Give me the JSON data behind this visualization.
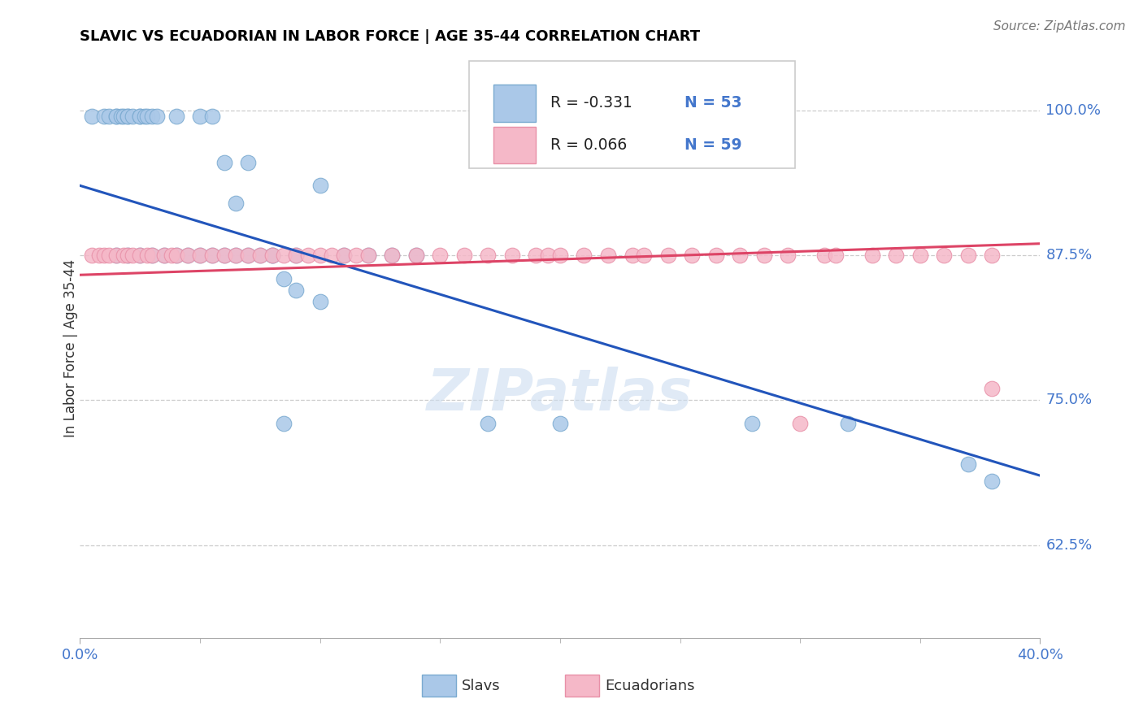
{
  "title": "SLAVIC VS ECUADORIAN IN LABOR FORCE | AGE 35-44 CORRELATION CHART",
  "source": "Source: ZipAtlas.com",
  "ylabel": "In Labor Force | Age 35-44",
  "legend_r_slavs": "R = -0.331",
  "legend_n_slavs": "N = 53",
  "legend_r_ecua": "R = 0.066",
  "legend_n_ecua": "N = 59",
  "slavs_color_fill": "#aac8e8",
  "slavs_color_edge": "#7aaad0",
  "ecua_color_fill": "#f5b8c8",
  "ecua_color_edge": "#e890a8",
  "slavs_line_color": "#2255bb",
  "ecua_line_color": "#dd4466",
  "axis_label_color": "#4477cc",
  "xmin": 0.0,
  "xmax": 0.4,
  "ymin": 0.545,
  "ymax": 1.045,
  "ytick_values": [
    0.625,
    0.75,
    0.875,
    1.0
  ],
  "ytick_labels": [
    "62.5%",
    "75.0%",
    "87.5%",
    "100.0%"
  ],
  "slavs_regression_y0": 0.935,
  "slavs_regression_y1": 0.685,
  "ecua_regression_y0": 0.858,
  "ecua_regression_y1": 0.885,
  "slavs_x": [
    0.005,
    0.01,
    0.012,
    0.015,
    0.015,
    0.017,
    0.018,
    0.02,
    0.02,
    0.022,
    0.025,
    0.025,
    0.027,
    0.028,
    0.03,
    0.032,
    0.04,
    0.05,
    0.055,
    0.06,
    0.065,
    0.07,
    0.08,
    0.09,
    0.1,
    0.015,
    0.02,
    0.025,
    0.03,
    0.035,
    0.04,
    0.045,
    0.05,
    0.055,
    0.06,
    0.065,
    0.07,
    0.075,
    0.08,
    0.085,
    0.09,
    0.1,
    0.11,
    0.12,
    0.13,
    0.14,
    0.085,
    0.17,
    0.2,
    0.28,
    0.32,
    0.37,
    0.38
  ],
  "slavs_y": [
    0.995,
    0.995,
    0.995,
    0.995,
    0.995,
    0.995,
    0.995,
    0.995,
    0.995,
    0.995,
    0.995,
    0.995,
    0.995,
    0.995,
    0.995,
    0.995,
    0.995,
    0.995,
    0.995,
    0.955,
    0.92,
    0.955,
    0.875,
    0.875,
    0.935,
    0.875,
    0.875,
    0.875,
    0.875,
    0.875,
    0.875,
    0.875,
    0.875,
    0.875,
    0.875,
    0.875,
    0.875,
    0.875,
    0.875,
    0.855,
    0.845,
    0.835,
    0.875,
    0.875,
    0.875,
    0.875,
    0.73,
    0.73,
    0.73,
    0.73,
    0.73,
    0.695,
    0.68
  ],
  "ecua_x": [
    0.005,
    0.008,
    0.01,
    0.012,
    0.015,
    0.018,
    0.02,
    0.022,
    0.025,
    0.028,
    0.03,
    0.035,
    0.038,
    0.04,
    0.045,
    0.05,
    0.055,
    0.06,
    0.065,
    0.07,
    0.075,
    0.08,
    0.085,
    0.09,
    0.095,
    0.1,
    0.105,
    0.11,
    0.115,
    0.12,
    0.13,
    0.14,
    0.15,
    0.16,
    0.17,
    0.18,
    0.19,
    0.195,
    0.2,
    0.21,
    0.22,
    0.23,
    0.235,
    0.245,
    0.255,
    0.265,
    0.275,
    0.285,
    0.295,
    0.31,
    0.315,
    0.33,
    0.34,
    0.35,
    0.36,
    0.37,
    0.38,
    0.3,
    0.38
  ],
  "ecua_y": [
    0.875,
    0.875,
    0.875,
    0.875,
    0.875,
    0.875,
    0.875,
    0.875,
    0.875,
    0.875,
    0.875,
    0.875,
    0.875,
    0.875,
    0.875,
    0.875,
    0.875,
    0.875,
    0.875,
    0.875,
    0.875,
    0.875,
    0.875,
    0.875,
    0.875,
    0.875,
    0.875,
    0.875,
    0.875,
    0.875,
    0.875,
    0.875,
    0.875,
    0.875,
    0.875,
    0.875,
    0.875,
    0.875,
    0.875,
    0.875,
    0.875,
    0.875,
    0.875,
    0.875,
    0.875,
    0.875,
    0.875,
    0.875,
    0.875,
    0.875,
    0.875,
    0.875,
    0.875,
    0.875,
    0.875,
    0.875,
    0.875,
    0.73,
    0.76
  ]
}
